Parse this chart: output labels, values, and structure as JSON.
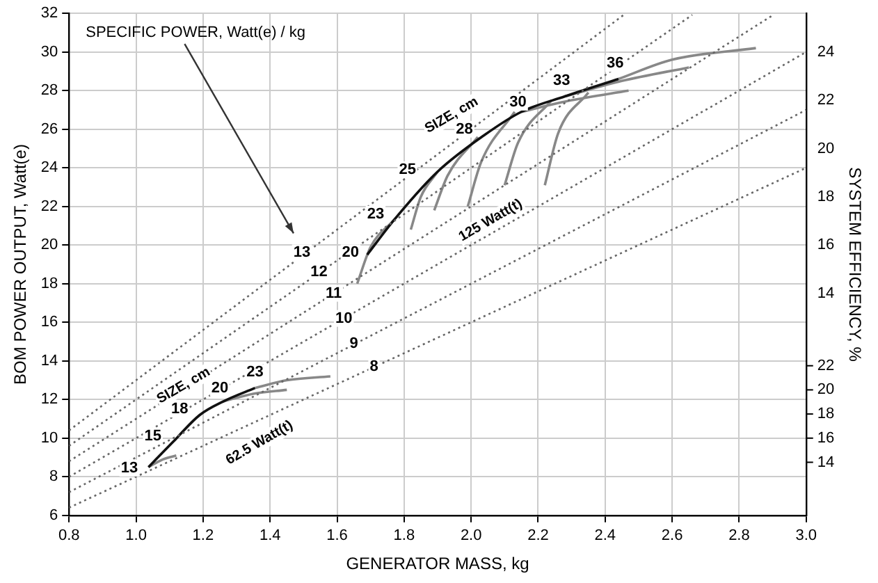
{
  "chart_data": {
    "type": "line",
    "xlabel": "GENERATOR MASS, kg",
    "ylabel": "BOM POWER OUTPUT, Watt(e)",
    "y2label": "SYSTEM EFFICIENCY, %",
    "xlim": [
      0.8,
      3.0
    ],
    "xticks": [
      {
        "value": 0.8,
        "label": "0.8"
      },
      {
        "value": 1.0,
        "label": "1.0"
      },
      {
        "value": 1.2,
        "label": "1.2"
      },
      {
        "value": 1.4,
        "label": "1.4"
      },
      {
        "value": 1.6,
        "label": "1.6"
      },
      {
        "value": 1.8,
        "label": "1.8"
      },
      {
        "value": 2.0,
        "label": "2.0"
      },
      {
        "value": 2.2,
        "label": "2.2"
      },
      {
        "value": 2.4,
        "label": "2.4"
      },
      {
        "value": 2.6,
        "label": "2.6"
      },
      {
        "value": 2.8,
        "label": "2.8"
      },
      {
        "value": 3.0,
        "label": "3.0"
      }
    ],
    "ylim": [
      6,
      32
    ],
    "yticks": [
      6,
      8,
      10,
      12,
      14,
      16,
      18,
      20,
      22,
      24,
      26,
      28,
      30,
      32
    ],
    "y2lim": [
      4.8,
      25.6
    ],
    "y2ticks": [
      14,
      16,
      18,
      20,
      22,
      24
    ],
    "y3lim": [
      9.6,
      51.2
    ],
    "y3ticks": [
      14,
      16,
      18,
      20,
      22
    ],
    "grid": true,
    "legend": false,
    "marker": "none",
    "series": [
      {
        "color": "#666666",
        "line_style": "dotted",
        "x": [
          0.8,
          2.46
        ],
        "values": [
          10.4,
          31.98
        ]
      },
      {
        "color": "#666666",
        "line_style": "dotted",
        "x": [
          0.8,
          2.66
        ],
        "values": [
          9.6,
          31.92
        ]
      },
      {
        "color": "#666666",
        "line_style": "dotted",
        "x": [
          0.8,
          2.9
        ],
        "values": [
          8.8,
          31.9
        ]
      },
      {
        "color": "#666666",
        "line_style": "dotted",
        "x": [
          0.8,
          3.0
        ],
        "values": [
          8.0,
          30.0
        ]
      },
      {
        "color": "#666666",
        "line_style": "dotted",
        "x": [
          0.8,
          3.0
        ],
        "values": [
          7.2,
          27.0
        ]
      },
      {
        "color": "#666666",
        "line_style": "dotted",
        "x": [
          0.8,
          3.0
        ],
        "values": [
          6.4,
          24.0
        ]
      },
      {
        "color": "#111111",
        "line_style": "solid",
        "x": [
          1.69,
          1.77,
          1.9,
          2.04,
          2.15,
          2.28,
          2.44
        ],
        "values": [
          19.5,
          21.3,
          23.8,
          25.7,
          26.9,
          27.7,
          28.6
        ]
      },
      {
        "color": "#888888",
        "line_style": "solid",
        "x": [
          2.44,
          2.6,
          2.85
        ],
        "values": [
          28.6,
          29.6,
          30.2
        ]
      },
      {
        "color": "#888888",
        "line_style": "solid",
        "x": [
          2.28,
          2.45,
          2.65
        ],
        "values": [
          27.7,
          28.5,
          29.2
        ]
      },
      {
        "color": "#888888",
        "line_style": "solid",
        "x": [
          2.15,
          2.3,
          2.47
        ],
        "values": [
          26.9,
          27.5,
          28.0
        ]
      },
      {
        "color": "#888888",
        "line_style": "solid",
        "x": [
          2.22,
          2.26,
          2.35
        ],
        "values": [
          23.1,
          25.8,
          27.9
        ]
      },
      {
        "color": "#888888",
        "line_style": "solid",
        "x": [
          2.1,
          2.14,
          2.24
        ],
        "values": [
          23.1,
          25.3,
          27.5
        ]
      },
      {
        "color": "#888888",
        "line_style": "solid",
        "x": [
          1.99,
          2.03,
          2.13
        ],
        "values": [
          22.0,
          24.3,
          26.9
        ]
      },
      {
        "color": "#888888",
        "line_style": "solid",
        "x": [
          1.89,
          1.93,
          2.02
        ],
        "values": [
          21.8,
          23.6,
          25.6
        ]
      },
      {
        "color": "#888888",
        "line_style": "solid",
        "x": [
          1.82,
          1.85,
          1.9
        ],
        "values": [
          20.8,
          22.5,
          23.8
        ]
      },
      {
        "color": "#888888",
        "line_style": "solid",
        "x": [
          1.66,
          1.7,
          1.77
        ],
        "values": [
          18.0,
          19.9,
          21.3
        ]
      },
      {
        "color": "#111111",
        "line_style": "solid",
        "x": [
          1.037,
          1.11,
          1.19,
          1.26,
          1.355
        ],
        "values": [
          8.5,
          9.8,
          11.2,
          11.9,
          12.6
        ]
      },
      {
        "color": "#888888",
        "line_style": "solid",
        "x": [
          1.355,
          1.45,
          1.58
        ],
        "values": [
          12.6,
          13.0,
          13.2
        ]
      },
      {
        "color": "#888888",
        "line_style": "solid",
        "x": [
          1.26,
          1.35,
          1.45
        ],
        "values": [
          11.9,
          12.3,
          12.5
        ]
      },
      {
        "color": "#888888",
        "line_style": "solid",
        "x": [
          1.037,
          1.08,
          1.12
        ],
        "values": [
          8.5,
          8.9,
          9.1
        ]
      }
    ],
    "annotations": [
      "SPECIFIC POWER, Watt(e) / kg",
      {
        "text": "13",
        "x": 1.495,
        "y": 19.6
      },
      {
        "text": "12",
        "x": 1.546,
        "y": 18.6
      },
      {
        "text": "11",
        "x": 1.59,
        "y": 17.5
      },
      {
        "text": "10",
        "x": 1.62,
        "y": 16.2
      },
      {
        "text": "9",
        "x": 1.65,
        "y": 14.9
      },
      {
        "text": "8",
        "x": 1.71,
        "y": 13.7
      },
      {
        "text": "20",
        "x": 1.64,
        "y": 19.6
      },
      {
        "text": "23",
        "x": 1.715,
        "y": 21.6
      },
      {
        "text": "25",
        "x": 1.81,
        "y": 23.9
      },
      {
        "text": "28",
        "x": 1.98,
        "y": 26.0
      },
      {
        "text": "30",
        "x": 2.14,
        "y": 27.4
      },
      {
        "text": "33",
        "x": 2.27,
        "y": 28.5
      },
      {
        "text": "36",
        "x": 2.43,
        "y": 29.4
      },
      {
        "text": "SIZE, cm",
        "x": 2.0,
        "y": 26.0
      },
      {
        "text": "125 Watt(t)",
        "x": 2.0,
        "y": 22.0
      },
      {
        "text": "13",
        "x": 0.98,
        "y": 8.45
      },
      {
        "text": "15",
        "x": 1.05,
        "y": 10.1
      },
      {
        "text": "18",
        "x": 1.13,
        "y": 11.5
      },
      {
        "text": "20",
        "x": 1.25,
        "y": 12.6
      },
      {
        "text": "23",
        "x": 1.355,
        "y": 13.4
      },
      {
        "text": "SIZE, cm",
        "x": 1.2,
        "y": 12.0
      },
      {
        "text": "62.5 Watt(t)",
        "x": 1.31,
        "y": 10.48
      }
    ]
  }
}
